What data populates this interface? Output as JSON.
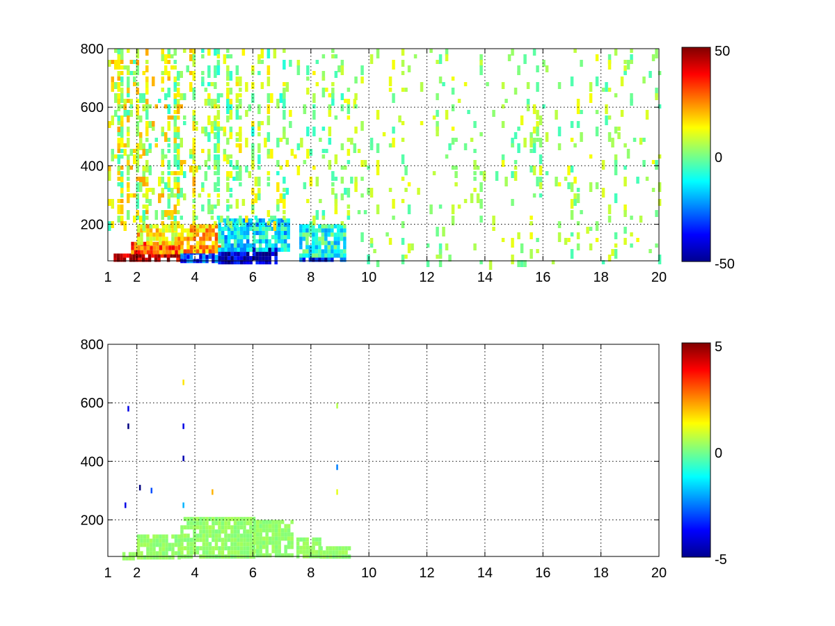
{
  "figure": {
    "background": "#ffffff"
  },
  "colormap": "jet",
  "chart_data": [
    {
      "type": "heatmap",
      "title": "",
      "xlabel": "",
      "ylabel": "",
      "xlim": [
        1,
        20
      ],
      "ylim": [
        75,
        800
      ],
      "xticks": [
        1,
        2,
        4,
        6,
        8,
        10,
        12,
        14,
        16,
        18,
        20
      ],
      "yticks": [
        200,
        400,
        600,
        800
      ],
      "grid": true,
      "grid_style": "dotted",
      "colorbar": {
        "min": -50,
        "max": 50,
        "ticks": [
          50,
          0,
          -50
        ],
        "placement": "right"
      },
      "regions": [
        {
          "x": [
            1.2,
            3.5
          ],
          "y": [
            75,
            100
          ],
          "value": 45
        },
        {
          "x": [
            1.8,
            3.6
          ],
          "y": [
            100,
            140
          ],
          "value": 28
        },
        {
          "x": [
            2.0,
            3.6
          ],
          "y": [
            140,
            200
          ],
          "value": 14
        },
        {
          "x": [
            3.5,
            4.8
          ],
          "y": [
            75,
            110
          ],
          "value": -30
        },
        {
          "x": [
            3.5,
            4.8
          ],
          "y": [
            110,
            200
          ],
          "value": 20
        },
        {
          "x": [
            4.8,
            6.8
          ],
          "y": [
            75,
            120
          ],
          "value": -45
        },
        {
          "x": [
            4.8,
            7.2
          ],
          "y": [
            120,
            220
          ],
          "value": -15
        },
        {
          "x": [
            7.6,
            9.2
          ],
          "y": [
            75,
            100
          ],
          "value": -35
        },
        {
          "x": [
            7.6,
            9.2
          ],
          "y": [
            100,
            200
          ],
          "value": -10
        }
      ],
      "scatter_density": [
        {
          "x": [
            1,
            4
          ],
          "y": [
            200,
            800
          ],
          "density": 0.34,
          "range": [
            -8,
            22
          ]
        },
        {
          "x": [
            4,
            7.3
          ],
          "y": [
            200,
            800
          ],
          "density": 0.22,
          "range": [
            -10,
            16
          ]
        },
        {
          "x": [
            7.3,
            9.5
          ],
          "y": [
            200,
            800
          ],
          "density": 0.14,
          "range": [
            -8,
            14
          ]
        },
        {
          "x": [
            9.5,
            20
          ],
          "y": [
            75,
            800
          ],
          "density": 0.07,
          "range": [
            -6,
            12
          ]
        }
      ]
    },
    {
      "type": "heatmap",
      "title": "",
      "xlabel": "",
      "ylabel": "",
      "xlim": [
        1,
        20
      ],
      "ylim": [
        75,
        800
      ],
      "xticks": [
        1,
        2,
        4,
        6,
        8,
        10,
        12,
        14,
        16,
        18,
        20
      ],
      "yticks": [
        200,
        400,
        600,
        800
      ],
      "grid": true,
      "grid_style": "dotted",
      "colorbar": {
        "min": -5,
        "max": 5,
        "ticks": [
          5,
          0,
          -5
        ],
        "placement": "right"
      },
      "regions": [
        {
          "x": [
            1.5,
            2.0
          ],
          "y": [
            75,
            90
          ],
          "value": 0.2
        },
        {
          "x": [
            2.0,
            3.5
          ],
          "y": [
            75,
            150
          ],
          "value": 0.2
        },
        {
          "x": [
            3.5,
            6.0
          ],
          "y": [
            75,
            210
          ],
          "value": 0.2
        },
        {
          "x": [
            6.0,
            7.3
          ],
          "y": [
            75,
            200
          ],
          "value": 0.2
        },
        {
          "x": [
            7.5,
            8.3
          ],
          "y": [
            75,
            140
          ],
          "value": 0.2
        },
        {
          "x": [
            8.3,
            9.3
          ],
          "y": [
            75,
            110
          ],
          "value": 0.2
        }
      ],
      "points": [
        {
          "x": 3.6,
          "y": 670,
          "value": 1.5
        },
        {
          "x": 3.6,
          "y": 520,
          "value": -4
        },
        {
          "x": 3.6,
          "y": 410,
          "value": -4.5
        },
        {
          "x": 3.6,
          "y": 250,
          "value": -2
        },
        {
          "x": 1.7,
          "y": 580,
          "value": -4
        },
        {
          "x": 1.7,
          "y": 520,
          "value": -5
        },
        {
          "x": 1.6,
          "y": 250,
          "value": -4
        },
        {
          "x": 2.1,
          "y": 310,
          "value": -5
        },
        {
          "x": 2.5,
          "y": 300,
          "value": -3
        },
        {
          "x": 4.6,
          "y": 295,
          "value": 2
        },
        {
          "x": 8.9,
          "y": 590,
          "value": 0.5
        },
        {
          "x": 8.9,
          "y": 380,
          "value": -2.5
        },
        {
          "x": 8.9,
          "y": 295,
          "value": 1
        }
      ]
    }
  ]
}
